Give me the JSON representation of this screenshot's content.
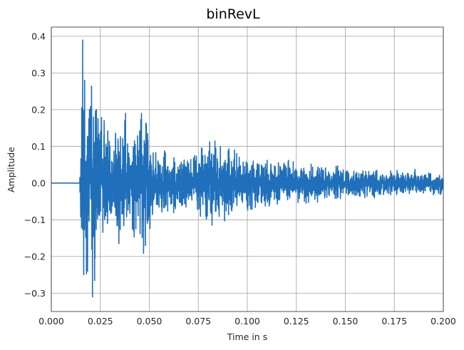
{
  "chart_data": {
    "type": "line",
    "title": "binRevL",
    "xlabel": "Time in s",
    "ylabel": "Amplitude",
    "xlim": [
      0.0,
      0.2
    ],
    "ylim": [
      -0.35,
      0.425
    ],
    "xticks": [
      0.0,
      0.025,
      0.05,
      0.075,
      0.1,
      0.125,
      0.15,
      0.175,
      0.2
    ],
    "xtick_labels": [
      "0.000",
      "0.025",
      "0.050",
      "0.075",
      "0.100",
      "0.125",
      "0.150",
      "0.175",
      "0.200"
    ],
    "yticks": [
      -0.3,
      -0.2,
      -0.1,
      0.0,
      0.1,
      0.2,
      0.3,
      0.4
    ],
    "ytick_labels": [
      "−0.3",
      "−0.2",
      "−0.1",
      "0.0",
      "0.1",
      "0.2",
      "0.3",
      "0.4"
    ],
    "grid": true,
    "color": "#1f6fba",
    "series": [
      {
        "onset": 0.0145,
        "envelope": [
          {
            "t": 0.0145,
            "v": 0.0
          },
          {
            "t": 0.015,
            "v": 0.16
          },
          {
            "t": 0.016,
            "v": 0.39
          },
          {
            "t": 0.0175,
            "v": 0.25
          },
          {
            "t": 0.019,
            "v": 0.2
          },
          {
            "t": 0.021,
            "v": 0.31
          },
          {
            "t": 0.024,
            "v": 0.17
          },
          {
            "t": 0.03,
            "v": 0.13
          },
          {
            "t": 0.037,
            "v": 0.19
          },
          {
            "t": 0.04,
            "v": 0.12
          },
          {
            "t": 0.0465,
            "v": 0.19
          },
          {
            "t": 0.052,
            "v": 0.1
          },
          {
            "t": 0.07,
            "v": 0.07
          },
          {
            "t": 0.082,
            "v": 0.11
          },
          {
            "t": 0.1,
            "v": 0.07
          },
          {
            "t": 0.125,
            "v": 0.055
          },
          {
            "t": 0.15,
            "v": 0.04
          },
          {
            "t": 0.175,
            "v": 0.035
          },
          {
            "t": 0.2,
            "v": 0.03
          }
        ],
        "peaks": [
          {
            "t": 0.016,
            "v": 0.39
          },
          {
            "t": 0.0165,
            "v": -0.25
          },
          {
            "t": 0.017,
            "v": 0.28
          },
          {
            "t": 0.0185,
            "v": -0.24
          },
          {
            "t": 0.0195,
            "v": 0.2
          },
          {
            "t": 0.021,
            "v": -0.31
          },
          {
            "t": 0.0215,
            "v": 0.18
          },
          {
            "t": 0.023,
            "v": 0.2
          },
          {
            "t": 0.034,
            "v": 0.12
          },
          {
            "t": 0.037,
            "v": -0.1
          },
          {
            "t": 0.0375,
            "v": 0.17
          },
          {
            "t": 0.042,
            "v": -0.13
          },
          {
            "t": 0.046,
            "v": 0.19
          },
          {
            "t": 0.048,
            "v": -0.17
          },
          {
            "t": 0.082,
            "v": 0.11
          },
          {
            "t": 0.082,
            "v": -0.115
          },
          {
            "t": 0.0935,
            "v": 0.09
          },
          {
            "t": 0.103,
            "v": 0.06
          },
          {
            "t": 0.121,
            "v": 0.062
          },
          {
            "t": 0.13,
            "v": -0.055
          },
          {
            "t": 0.16,
            "v": -0.04
          }
        ]
      }
    ]
  }
}
